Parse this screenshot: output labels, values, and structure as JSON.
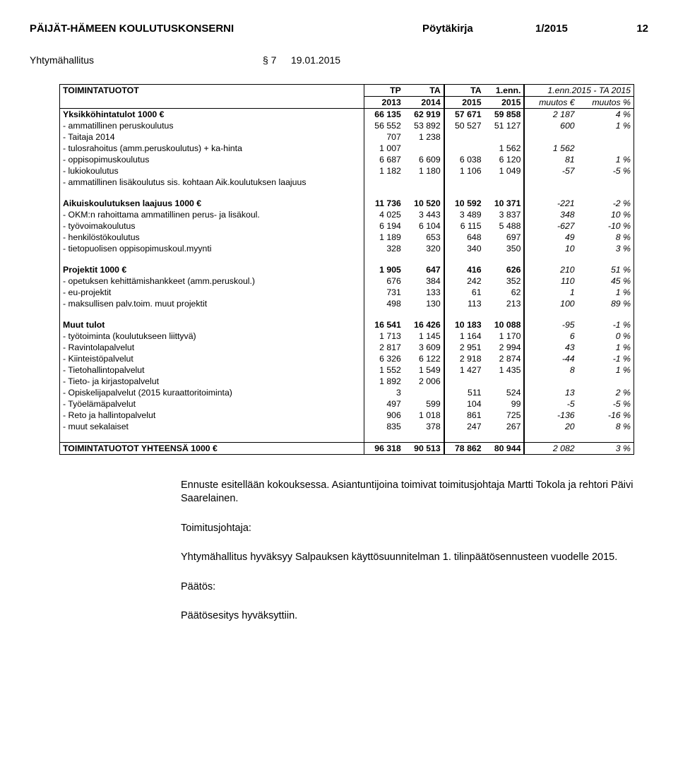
{
  "header": {
    "org": "PÄIJÄT-HÄMEEN KOULUTUSKONSERNI",
    "doc_type": "Pöytäkirja",
    "doc_num": "1/2015",
    "page": "12"
  },
  "subheader": {
    "body": "Yhtymähallitus",
    "para": "§ 7",
    "date": "19.01.2015"
  },
  "table": {
    "columns": [
      {
        "key": "label",
        "label": "TOIMINTATUOTOT"
      },
      {
        "key": "tp2013",
        "label": "TP\n2013"
      },
      {
        "key": "ta2014",
        "label": "TA\n2014"
      },
      {
        "key": "ta2015",
        "label": "TA\n2015"
      },
      {
        "key": "enn2015",
        "label": "1.enn.\n2015"
      },
      {
        "key": "muutos_eur",
        "label": "1.enn.2015 - TA 2015\nmuutos €",
        "italic": true
      },
      {
        "key": "muutos_pct",
        "label": "muutos %",
        "italic": true
      }
    ],
    "sections": [
      {
        "title": "Yksikköhintatulot 1000 €",
        "title_values": [
          "66 135",
          "62 919",
          "57 671",
          "59 858",
          "2 187",
          "4 %"
        ],
        "rows": [
          {
            "label": "- ammatillinen peruskoulutus",
            "v": [
              "56 552",
              "53 892",
              "50 527",
              "51 127",
              "600",
              "1 %"
            ]
          },
          {
            "label": "- Taitaja 2014",
            "v": [
              "707",
              "1 238",
              "",
              "",
              "",
              ""
            ]
          },
          {
            "label": "- tulosrahoitus (amm.peruskoulutus) + ka-hinta",
            "v": [
              "1 007",
              "",
              "",
              "1 562",
              "1 562",
              ""
            ]
          },
          {
            "label": "- oppisopimuskoulutus",
            "v": [
              "6 687",
              "6 609",
              "6 038",
              "6 120",
              "81",
              "1 %"
            ]
          },
          {
            "label": "- lukiokoulutus",
            "v": [
              "1 182",
              "1 180",
              "1 106",
              "1 049",
              "-57",
              "-5 %"
            ]
          },
          {
            "label": "- ammatillinen lisäkoulutus sis. kohtaan Aik.koulutuksen laajuus",
            "v": [
              "",
              "",
              "",
              "",
              "",
              ""
            ]
          }
        ]
      },
      {
        "title": "Aikuiskoulutuksen laajuus 1000 €",
        "title_values": [
          "11 736",
          "10 520",
          "10 592",
          "10 371",
          "-221",
          "-2 %"
        ],
        "rows": [
          {
            "label": "- OKM:n rahoittama ammatillinen perus- ja lisäkoul.",
            "v": [
              "4 025",
              "3 443",
              "3 489",
              "3 837",
              "348",
              "10 %"
            ]
          },
          {
            "label": "- työvoimakoulutus",
            "v": [
              "6 194",
              "6 104",
              "6 115",
              "5 488",
              "-627",
              "-10 %"
            ]
          },
          {
            "label": "- henkilöstökoulutus",
            "v": [
              "1 189",
              "653",
              "648",
              "697",
              "49",
              "8 %"
            ]
          },
          {
            "label": "- tietopuolisen oppisopimuskoul.myynti",
            "v": [
              "328",
              "320",
              "340",
              "350",
              "10",
              "3 %"
            ]
          }
        ]
      },
      {
        "title": "Projektit 1000 €",
        "title_values": [
          "1 905",
          "647",
          "416",
          "626",
          "210",
          "51 %"
        ],
        "rows": [
          {
            "label": "- opetuksen kehittämishankkeet (amm.peruskoul.)",
            "v": [
              "676",
              "384",
              "242",
              "352",
              "110",
              "45 %"
            ]
          },
          {
            "label": "- eu-projektit",
            "v": [
              "731",
              "133",
              "61",
              "62",
              "1",
              "1 %"
            ]
          },
          {
            "label": "- maksullisen palv.toim. muut projektit",
            "v": [
              "498",
              "130",
              "113",
              "213",
              "100",
              "89 %"
            ]
          }
        ]
      },
      {
        "title": "Muut tulot",
        "title_values": [
          "16 541",
          "16 426",
          "10 183",
          "10 088",
          "-95",
          "-1 %"
        ],
        "rows": [
          {
            "label": "- työtoiminta (koulutukseen liittyvä)",
            "v": [
              "1 713",
              "1 145",
              "1 164",
              "1 170",
              "6",
              "0 %"
            ]
          },
          {
            "label": "- Ravintolapalvelut",
            "v": [
              "2 817",
              "3 609",
              "2 951",
              "2 994",
              "43",
              "1 %"
            ]
          },
          {
            "label": "- Kiinteistöpalvelut",
            "v": [
              "6 326",
              "6 122",
              "2 918",
              "2 874",
              "-44",
              "-1 %"
            ]
          },
          {
            "label": "- Tietohallintopalvelut",
            "v": [
              "1 552",
              "1 549",
              "1 427",
              "1 435",
              "8",
              "1 %"
            ]
          },
          {
            "label": "- Tieto- ja kirjastopalvelut",
            "v": [
              "1 892",
              "2 006",
              "",
              "",
              "",
              ""
            ]
          },
          {
            "label": "- Opiskelijapalvelut (2015 kuraattoritoiminta)",
            "v": [
              "3",
              "",
              "511",
              "524",
              "13",
              "2 %"
            ]
          },
          {
            "label": "- Työelämäpalvelut",
            "v": [
              "497",
              "599",
              "104",
              "99",
              "-5",
              "-5 %"
            ]
          },
          {
            "label": "- Reto ja hallintopalvelut",
            "v": [
              "906",
              "1 018",
              "861",
              "725",
              "-136",
              "-16 %"
            ]
          },
          {
            "label": "- muut sekalaiset",
            "v": [
              "835",
              "378",
              "247",
              "267",
              "20",
              "8 %"
            ]
          }
        ]
      }
    ],
    "total": {
      "label": "TOIMINTATUOTOT YHTEENSÄ 1000 €",
      "v": [
        "96 318",
        "90 513",
        "78 862",
        "80 944",
        "2 082",
        "3 %"
      ]
    }
  },
  "body": {
    "p1": "Ennuste esitellään kokouksessa. Asiantuntijoina toimivat toimitusjohtaja Martti Tokola ja rehtori Päivi Saarelainen.",
    "role": "Toimitusjohtaja:",
    "p2": "Yhtymähallitus hyväksyy Salpauksen käyttösuunnitelman 1. tilinpäätösennusteen vuodelle 2015.",
    "decision_label": "Päätös:",
    "p3": "Päätösesitys hyväksyttiin."
  }
}
